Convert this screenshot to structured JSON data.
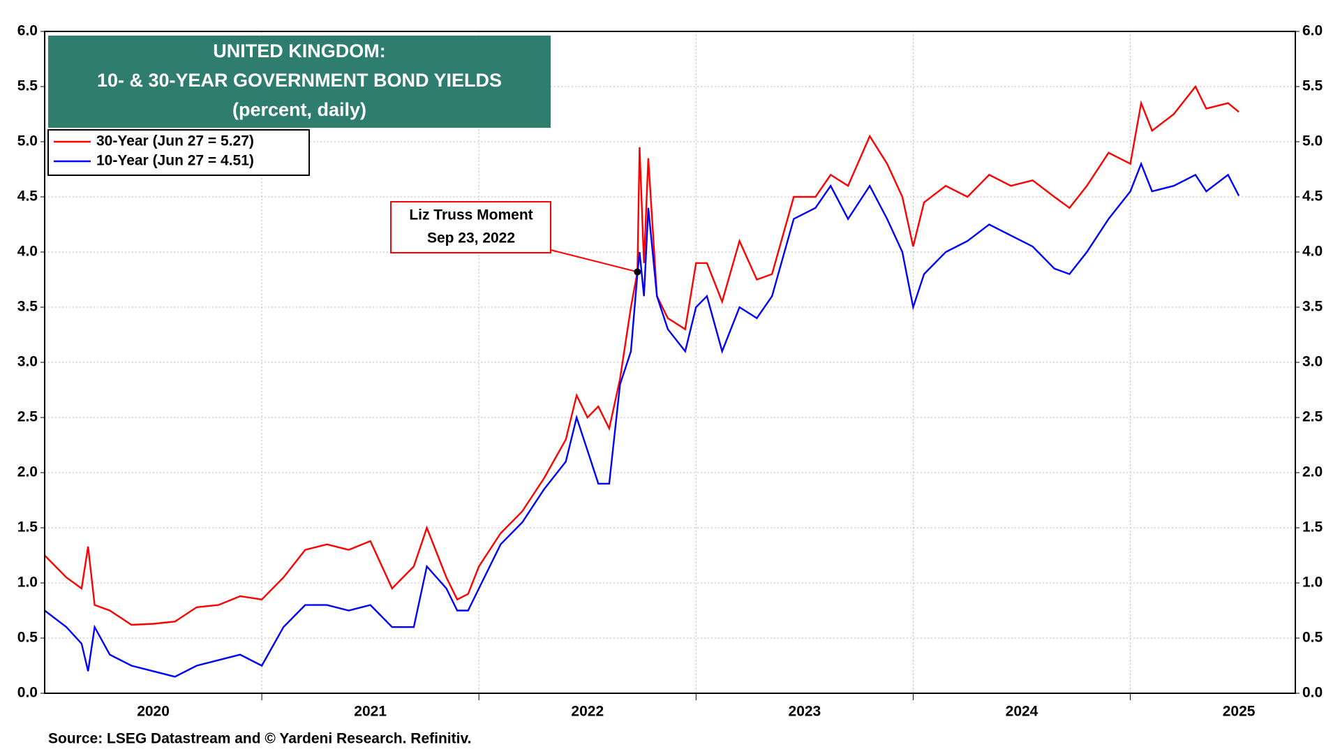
{
  "chart_data": {
    "type": "line",
    "title": [
      "UNITED KINGDOM:",
      "10- & 30-YEAR GOVERNMENT BOND YIELDS"
    ],
    "subtitle": "(percent, daily)",
    "source": "Source: LSEG Datastream and © Yardeni Research. Refinitiv.",
    "x": [
      2020.0,
      2020.1,
      2020.17,
      2020.2,
      2020.23,
      2020.3,
      2020.4,
      2020.5,
      2020.6,
      2020.7,
      2020.8,
      2020.9,
      2021.0,
      2021.1,
      2021.2,
      2021.3,
      2021.4,
      2021.5,
      2021.6,
      2021.7,
      2021.76,
      2021.85,
      2021.9,
      2021.95,
      2022.0,
      2022.1,
      2022.2,
      2022.3,
      2022.4,
      2022.45,
      2022.5,
      2022.55,
      2022.6,
      2022.65,
      2022.7,
      2022.73,
      2022.74,
      2022.76,
      2022.78,
      2022.82,
      2022.87,
      2022.95,
      2023.0,
      2023.05,
      2023.12,
      2023.2,
      2023.28,
      2023.35,
      2023.45,
      2023.55,
      2023.62,
      2023.7,
      2023.8,
      2023.88,
      2023.95,
      2024.0,
      2024.05,
      2024.15,
      2024.25,
      2024.35,
      2024.45,
      2024.55,
      2024.65,
      2024.72,
      2024.8,
      2024.9,
      2025.0,
      2025.05,
      2025.1,
      2025.2,
      2025.3,
      2025.35,
      2025.45,
      2025.5
    ],
    "series": [
      {
        "name": "30-Year (Jun 27 = 5.27)",
        "color": "#ff0000",
        "values": [
          1.25,
          1.05,
          0.95,
          1.33,
          0.8,
          0.75,
          0.62,
          0.63,
          0.65,
          0.78,
          0.8,
          0.88,
          0.85,
          1.05,
          1.3,
          1.35,
          1.3,
          1.38,
          0.95,
          1.15,
          1.5,
          1.05,
          0.85,
          0.9,
          1.15,
          1.45,
          1.65,
          1.95,
          2.3,
          2.7,
          2.5,
          2.6,
          2.4,
          2.85,
          3.5,
          3.82,
          4.95,
          3.9,
          4.85,
          3.6,
          3.4,
          3.3,
          3.9,
          3.9,
          3.55,
          4.1,
          3.75,
          3.8,
          4.5,
          4.5,
          4.7,
          4.6,
          5.05,
          4.8,
          4.5,
          4.05,
          4.45,
          4.6,
          4.5,
          4.7,
          4.6,
          4.65,
          4.5,
          4.4,
          4.6,
          4.9,
          4.8,
          5.35,
          5.1,
          5.25,
          5.5,
          5.3,
          5.35,
          5.27
        ]
      },
      {
        "name": "10-Year (Jun 27 = 4.51)",
        "color": "#0000ff",
        "values": [
          0.75,
          0.6,
          0.45,
          0.2,
          0.6,
          0.35,
          0.25,
          0.2,
          0.15,
          0.25,
          0.3,
          0.35,
          0.25,
          0.6,
          0.8,
          0.8,
          0.75,
          0.8,
          0.6,
          0.6,
          1.15,
          0.95,
          0.75,
          0.75,
          0.95,
          1.35,
          1.55,
          1.85,
          2.1,
          2.5,
          2.2,
          1.9,
          1.9,
          2.8,
          3.1,
          3.8,
          4.0,
          3.6,
          4.4,
          3.6,
          3.3,
          3.1,
          3.5,
          3.6,
          3.1,
          3.5,
          3.4,
          3.6,
          4.3,
          4.4,
          4.6,
          4.3,
          4.6,
          4.3,
          4.0,
          3.5,
          3.8,
          4.0,
          4.1,
          4.25,
          4.15,
          4.05,
          3.85,
          3.8,
          4.0,
          4.3,
          4.55,
          4.8,
          4.55,
          4.6,
          4.7,
          4.55,
          4.7,
          4.51
        ]
      }
    ],
    "annotation": {
      "text": [
        "Liz Truss Moment",
        "Sep 23, 2022"
      ],
      "x": 2022.73,
      "y": 3.82
    },
    "xlim": [
      2020.0,
      2025.76
    ],
    "xticks": [
      2021,
      2022,
      2023,
      2024,
      2025
    ],
    "xlabels": [
      2020,
      2021,
      2022,
      2023,
      2024,
      2025
    ],
    "ylim": [
      0,
      6
    ],
    "yticks": [
      {
        "value": 0,
        "label": "0.0"
      },
      {
        "value": 0.5,
        "label": "0.5"
      },
      {
        "value": 1,
        "label": "1.0"
      },
      {
        "value": 1.5,
        "label": "1.5"
      },
      {
        "value": 2,
        "label": "2.0"
      },
      {
        "value": 2.5,
        "label": "2.5"
      },
      {
        "value": 3,
        "label": "3.0"
      },
      {
        "value": 3.5,
        "label": "3.5"
      },
      {
        "value": 4,
        "label": "4.0"
      },
      {
        "value": 4.5,
        "label": "4.5"
      },
      {
        "value": 5,
        "label": "5.0"
      },
      {
        "value": 5.5,
        "label": "5.5"
      },
      {
        "value": 6,
        "label": "6.0"
      }
    ],
    "y2lim": [
      0,
      6
    ],
    "y2ticks": [
      {
        "value": 0,
        "label": "0.0"
      },
      {
        "value": 0.5,
        "label": "0.5"
      },
      {
        "value": 1,
        "label": "1.0"
      },
      {
        "value": 1.5,
        "label": "1.5"
      },
      {
        "value": 2,
        "label": "2.0"
      },
      {
        "value": 2.5,
        "label": "2.5"
      },
      {
        "value": 3,
        "label": "3.0"
      },
      {
        "value": 3.5,
        "label": "3.5"
      },
      {
        "value": 4,
        "label": "4.0"
      },
      {
        "value": 4.5,
        "label": "4.5"
      },
      {
        "value": 5,
        "label": "5.0"
      },
      {
        "value": 5.5,
        "label": "5.5"
      },
      {
        "value": 6,
        "label": "6.0"
      }
    ],
    "grid": true,
    "title_color": "#2e7d6f"
  }
}
